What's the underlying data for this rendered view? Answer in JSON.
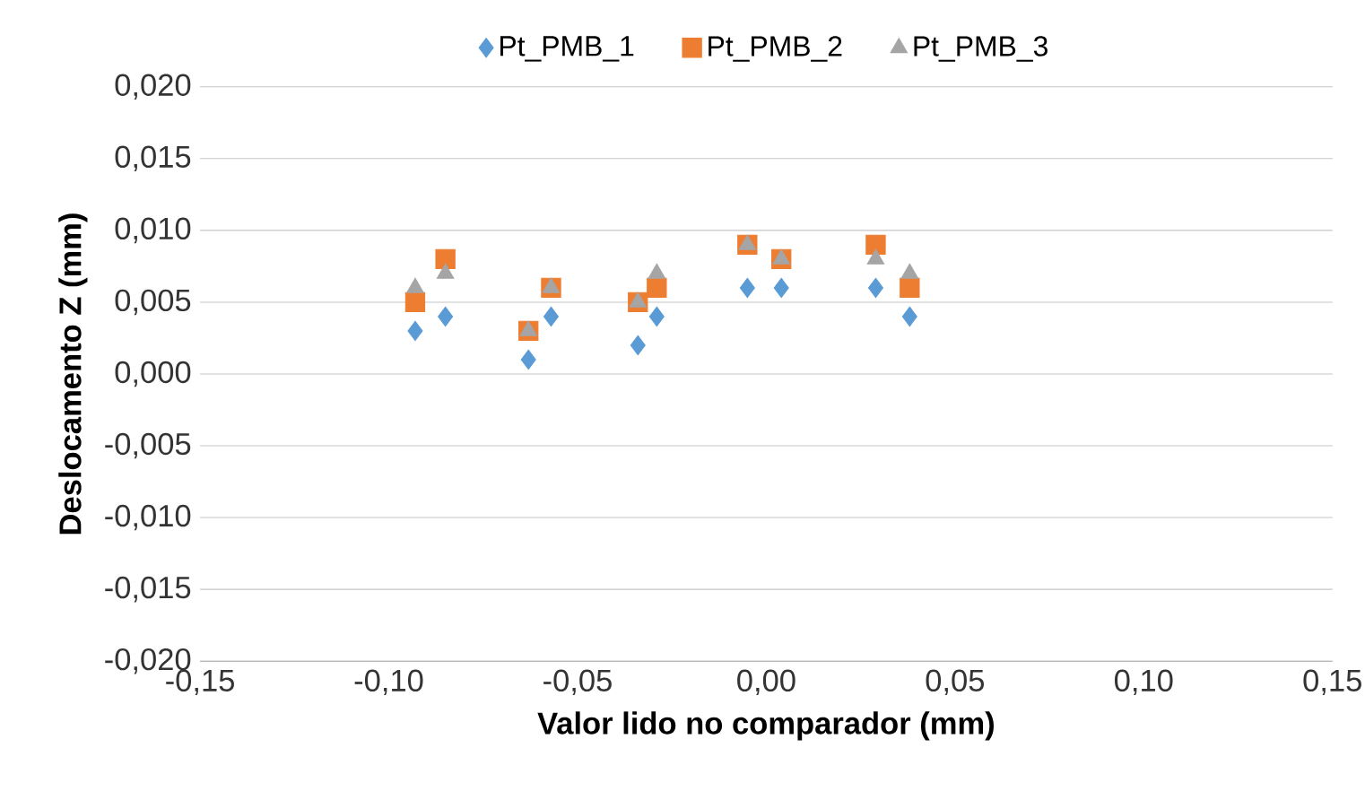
{
  "chart_data": {
    "type": "scatter",
    "xlabel": "Valor lido no comparador (mm)",
    "ylabel": "Deslocamento Z (mm)",
    "x": [
      -0.093,
      -0.085,
      -0.063,
      -0.057,
      -0.034,
      -0.029,
      -0.005,
      0.004,
      0.029,
      0.038
    ],
    "series": [
      {
        "name": "Pt_PMB_1",
        "color": "#5b9bd5",
        "marker": "diamond",
        "values": [
          0.003,
          0.004,
          0.001,
          0.004,
          0.002,
          0.004,
          0.006,
          0.006,
          0.006,
          0.004
        ]
      },
      {
        "name": "Pt_PMB_2",
        "color": "#ed7d31",
        "marker": "square",
        "values": [
          0.005,
          0.008,
          0.003,
          0.006,
          0.005,
          0.006,
          0.009,
          0.008,
          0.009,
          0.006
        ]
      },
      {
        "name": "Pt_PMB_3",
        "color": "#a5a5a5",
        "marker": "triangle",
        "values": [
          0.006,
          0.007,
          0.003,
          0.006,
          0.005,
          0.007,
          0.009,
          0.008,
          0.008,
          0.007
        ]
      }
    ],
    "xlim": [
      -0.15,
      0.15
    ],
    "xticks": [
      {
        "value": -0.15,
        "label": "-0,15"
      },
      {
        "value": -0.1,
        "label": "-0,10"
      },
      {
        "value": -0.05,
        "label": "-0,05"
      },
      {
        "value": 0,
        "label": "0,00"
      },
      {
        "value": 0.05,
        "label": "0,05"
      },
      {
        "value": 0.1,
        "label": "0,10"
      },
      {
        "value": 0.15,
        "label": "0,15"
      }
    ],
    "ylim": [
      -0.02,
      0.02
    ],
    "yticks": [
      {
        "value": -0.02,
        "label": "-0,020"
      },
      {
        "value": -0.015,
        "label": "-0,015"
      },
      {
        "value": -0.01,
        "label": "-0,010"
      },
      {
        "value": -0.005,
        "label": "-0,005"
      },
      {
        "value": 0,
        "label": "0,000"
      },
      {
        "value": 0.005,
        "label": "0,005"
      },
      {
        "value": 0.01,
        "label": "0,010"
      },
      {
        "value": 0.015,
        "label": "0,015"
      },
      {
        "value": 0.02,
        "label": "0,020"
      }
    ],
    "grid": "y",
    "legend": "top"
  }
}
